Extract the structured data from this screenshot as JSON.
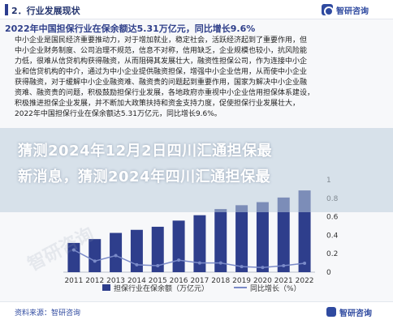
{
  "header": {
    "section_label": "2．行业发展现状",
    "logo_text": "智研咨询"
  },
  "title": "2022年中国担保行业在保余额达5.31万亿元，同比增长9.6%",
  "paragraph_lines": [
    "中小企业是国民经济重要推动力，对于增加就业，稳定社会，活跃经济起到了重要作用，但",
    "中小企业财务制度、公司治理不规范，信息不对称，信用缺乏，企业规模也较小，抗风险能",
    "力低，很难从信贷机构获得融资，从而阻碍其发展壮大，融资性担保公司，作为连接中小企",
    "业和信贷机构的中介，通过为中小企业提供融资担保，增强中小企业信用，从而使中小企业",
    "获得融资，对于缓解中小企业融资难、融资贵的问题起到重要作用，国家为解决中小企业融",
    "资难、融资贵的问题，积极鼓励担保行业发展，各地政府亦重视中小企业信用担保体系建设，",
    "积极推进担保企业发展，并不断加大政策扶持和资金支持力度，促使担保行业发展壮大，",
    "2022年中国担保行业在保余额达5.31万亿元，同比增长9.6%。"
  ],
  "overlay": {
    "line1": "猜测2024年12月2日四川汇通担保最",
    "line2": "新消息，猜测2024年四川汇通担保最"
  },
  "chart_data": {
    "type": "bar",
    "categories": [
      "2011",
      "2012",
      "2013",
      "2014",
      "2015",
      "2016",
      "2017",
      "2018",
      "2019",
      "2020",
      "2021",
      "2022"
    ],
    "series": [
      {
        "name": "担保行业在保余额（万亿元）",
        "type": "bar",
        "values": [
          1.9,
          2.15,
          2.55,
          2.75,
          2.95,
          3.35,
          3.7,
          4.1,
          4.35,
          4.55,
          4.85,
          5.31
        ]
      },
      {
        "name": "同比增长（%）",
        "type": "line",
        "values": [
          0.24,
          0.12,
          0.18,
          0.08,
          0.07,
          0.13,
          0.1,
          0.1,
          0.06,
          0.05,
          0.07,
          0.096
        ]
      }
    ],
    "y2_ticks": [
      "1",
      "0.8",
      "0.6",
      "0.4",
      "0.2",
      "0"
    ],
    "y2lim": [
      0,
      1
    ],
    "ylim": [
      0,
      6
    ],
    "bar_color": "#2e3e8c",
    "line_color": "#7a8ac8"
  },
  "legend": {
    "bar_label": "担保行业在保余额（万亿元）",
    "line_label": "同比增长（%）"
  },
  "footer": {
    "source": "资料来源：智研咨询",
    "logo_text": "智研咨询"
  },
  "watermark": "智研咨询"
}
